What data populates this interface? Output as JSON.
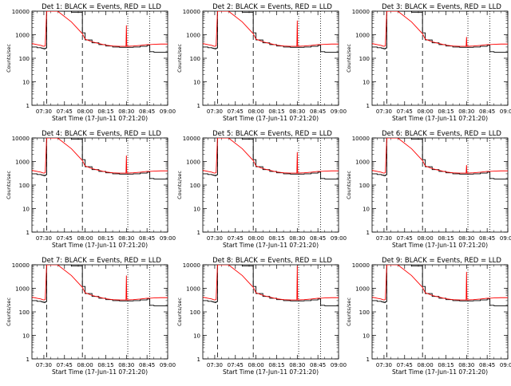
{
  "chart_data": {
    "type": "line",
    "grid": false,
    "shared": {
      "xlabel": "Start Time (17-Jun-11 07:21:20)",
      "ylabel": "Counts/sec",
      "xticks": [
        "07:30",
        "07:45",
        "08:00",
        "08:15",
        "08:30",
        "08:45",
        "09:00"
      ],
      "yticks": [
        "1",
        "10",
        "100",
        "1000",
        "10000"
      ],
      "ylim": [
        1,
        10000
      ],
      "y_scale": "log",
      "xlim": [
        "07:21:20",
        "09:00:00"
      ],
      "dashed_vlines": [
        "07:32",
        "07:58"
      ],
      "dotted_vlines": [
        "08:31",
        "08:47"
      ],
      "colors": {
        "events": "#000000",
        "lld": "#ff0000"
      }
    },
    "panels": [
      {
        "title": "Det 1: BLACK = Events, RED = LLD",
        "spike_time": "08:30",
        "spike_peak": 2500
      },
      {
        "title": "Det 2: BLACK = Events, RED = LLD",
        "spike_time": "08:30",
        "spike_peak": 4000
      },
      {
        "title": "Det 3: BLACK = Events, RED = LLD",
        "spike_time": "08:30",
        "spike_peak": 800
      },
      {
        "title": "Det 4: BLACK = Events, RED = LLD",
        "spike_time": "08:30",
        "spike_peak": 1800
      },
      {
        "title": "Det 5: BLACK = Events, RED = LLD",
        "spike_time": "08:30",
        "spike_peak": 2500
      },
      {
        "title": "Det 6: BLACK = Events, RED = LLD",
        "spike_time": "08:30",
        "spike_peak": 700
      },
      {
        "title": "Det 7: BLACK = Events, RED = LLD",
        "spike_time": "08:30",
        "spike_peak": 3500
      },
      {
        "title": "Det 8: BLACK = Events, RED = LLD",
        "spike_time": "08:30",
        "spike_peak": 9000
      },
      {
        "title": "Det 9: BLACK = Events, RED = LLD",
        "spike_time": "08:30",
        "spike_peak": 5000
      }
    ],
    "series": [
      {
        "name": "Events",
        "x": [
          "07:21:20",
          "07:25",
          "07:28",
          "07:29",
          "07:30",
          "07:31",
          "07:32",
          "07:33",
          "07:35",
          "07:38",
          "07:40",
          "07:50",
          "07:58",
          "08:00",
          "08:05",
          "08:10",
          "08:15",
          "08:20",
          "08:25",
          "08:30",
          "08:35",
          "08:40",
          "08:45",
          "08:47",
          "08:50",
          "08:55",
          "09:00"
        ],
        "values": [
          300,
          280,
          270,
          260,
          250,
          270,
          10000,
          10000,
          10000,
          10000,
          10000,
          9000,
          1200,
          600,
          450,
          380,
          330,
          300,
          290,
          290,
          300,
          320,
          350,
          190,
          180,
          180,
          170
        ]
      },
      {
        "name": "LLD",
        "x": [
          "07:21:20",
          "07:25",
          "07:28",
          "07:29",
          "07:30",
          "07:31",
          "07:32",
          "07:33",
          "07:35",
          "07:38",
          "07:40",
          "07:50",
          "07:58",
          "08:00",
          "08:05",
          "08:10",
          "08:15",
          "08:20",
          "08:25",
          "08:30",
          "08:35",
          "08:40",
          "08:45",
          "08:47",
          "08:50",
          "08:55",
          "09:00"
        ],
        "values": [
          420,
          380,
          350,
          330,
          320,
          330,
          10000,
          10000,
          10000,
          10000,
          10000,
          3500,
          1100,
          650,
          500,
          420,
          360,
          330,
          320,
          320,
          330,
          350,
          380,
          380,
          390,
          400,
          400
        ]
      }
    ]
  }
}
